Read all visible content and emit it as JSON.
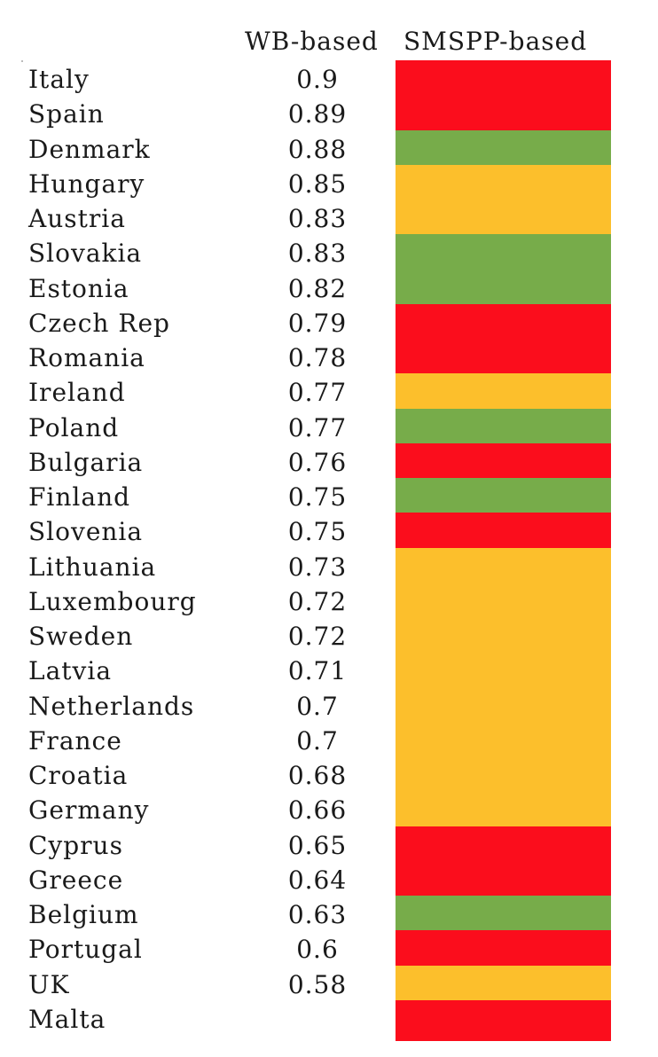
{
  "chart_data": {
    "type": "table",
    "columns": [
      "WB-based",
      "SMSPP-based"
    ],
    "legend_colors": {
      "red": "#fb0d1c",
      "green": "#77ac4a",
      "orange": "#fcbf2c"
    },
    "rows": [
      {
        "country": "Italy",
        "wb": "0.9",
        "smspp": "red"
      },
      {
        "country": "Spain",
        "wb": "0.89",
        "smspp": "red"
      },
      {
        "country": "Denmark",
        "wb": "0.88",
        "smspp": "green"
      },
      {
        "country": "Hungary",
        "wb": "0.85",
        "smspp": "orange"
      },
      {
        "country": "Austria",
        "wb": "0.83",
        "smspp": "orange"
      },
      {
        "country": "Slovakia",
        "wb": "0.83",
        "smspp": "green"
      },
      {
        "country": "Estonia",
        "wb": "0.82",
        "smspp": "green"
      },
      {
        "country": "Czech Rep",
        "wb": "0.79",
        "smspp": "red"
      },
      {
        "country": "Romania",
        "wb": "0.78",
        "smspp": "red"
      },
      {
        "country": "Ireland",
        "wb": "0.77",
        "smspp": "orange"
      },
      {
        "country": "Poland",
        "wb": "0.77",
        "smspp": "green"
      },
      {
        "country": "Bulgaria",
        "wb": "0.76",
        "smspp": "red"
      },
      {
        "country": "Finland",
        "wb": "0.75",
        "smspp": "green"
      },
      {
        "country": "Slovenia",
        "wb": "0.75",
        "smspp": "red"
      },
      {
        "country": "Lithuania",
        "wb": "0.73",
        "smspp": "orange"
      },
      {
        "country": "Luxembourg",
        "wb": "0.72",
        "smspp": "orange"
      },
      {
        "country": "Sweden",
        "wb": "0.72",
        "smspp": "orange"
      },
      {
        "country": "Latvia",
        "wb": "0.71",
        "smspp": "orange"
      },
      {
        "country": "Netherlands",
        "wb": "0.7",
        "smspp": "orange"
      },
      {
        "country": "France",
        "wb": "0.7",
        "smspp": "orange"
      },
      {
        "country": "Croatia",
        "wb": "0.68",
        "smspp": "orange"
      },
      {
        "country": "Germany",
        "wb": "0.66",
        "smspp": "orange"
      },
      {
        "country": "Cyprus",
        "wb": "0.65",
        "smspp": "red"
      },
      {
        "country": "Greece",
        "wb": "0.64",
        "smspp": "red"
      },
      {
        "country": "Belgium",
        "wb": "0.63",
        "smspp": "green"
      },
      {
        "country": "Portugal",
        "wb": "0.6",
        "smspp": "red"
      },
      {
        "country": "UK",
        "wb": "0.58",
        "smspp": "orange"
      },
      {
        "country": "Malta",
        "wb": "",
        "smspp": "red"
      }
    ]
  }
}
